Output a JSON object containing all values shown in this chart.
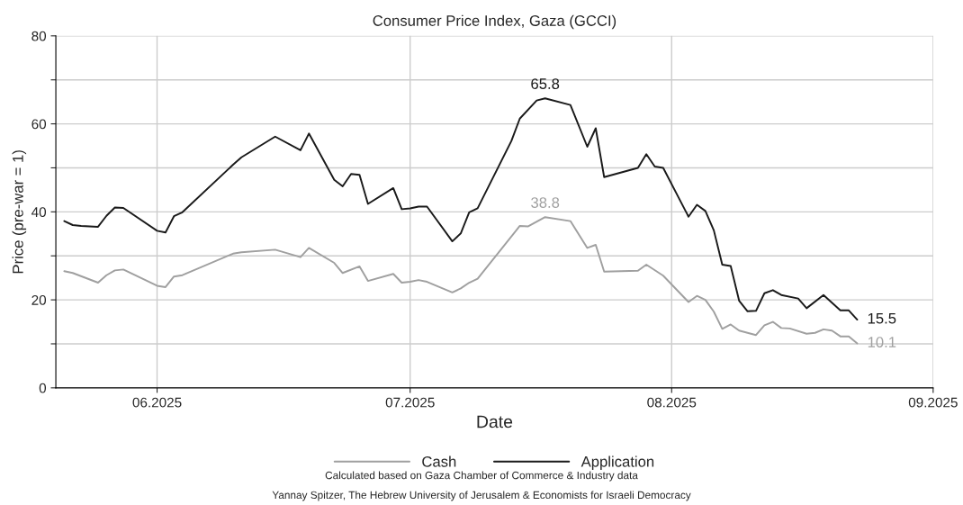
{
  "chart_data": {
    "type": "line",
    "title": "Consumer Price Index, Gaza (GCCI)",
    "xlabel": "Date",
    "ylabel": "Price (pre-war = 1)",
    "series": [
      {
        "name": "Cash",
        "color": "#a0a0a0",
        "x": [
          "2025-05-21",
          "2025-05-22",
          "2025-05-25",
          "2025-05-26",
          "2025-05-27",
          "2025-05-28",
          "2025-06-01",
          "2025-06-02",
          "2025-06-03",
          "2025-06-04",
          "2025-06-10",
          "2025-06-11",
          "2025-06-15",
          "2025-06-18",
          "2025-06-19",
          "2025-06-22",
          "2025-06-23",
          "2025-06-25",
          "2025-06-26",
          "2025-06-29",
          "2025-06-30",
          "2025-07-01",
          "2025-07-02",
          "2025-07-03",
          "2025-07-06",
          "2025-07-07",
          "2025-07-08",
          "2025-07-09",
          "2025-07-14",
          "2025-07-15",
          "2025-07-17",
          "2025-07-20",
          "2025-07-22",
          "2025-07-23",
          "2025-07-24",
          "2025-07-28",
          "2025-07-29",
          "2025-07-31",
          "2025-08-03",
          "2025-08-04",
          "2025-08-05",
          "2025-08-06",
          "2025-08-07",
          "2025-08-08",
          "2025-08-09",
          "2025-08-11",
          "2025-08-12",
          "2025-08-13",
          "2025-08-14",
          "2025-08-15",
          "2025-08-17",
          "2025-08-18",
          "2025-08-19",
          "2025-08-20",
          "2025-08-21",
          "2025-08-22",
          "2025-08-23"
        ],
        "values": [
          26.5,
          26.1,
          23.9,
          25.6,
          26.7,
          26.9,
          23.2,
          22.9,
          25.3,
          25.6,
          30.5,
          30.8,
          31.4,
          29.7,
          31.8,
          28.4,
          26.1,
          27.6,
          24.3,
          25.9,
          23.9,
          24.1,
          24.5,
          24.1,
          21.7,
          22.6,
          23.9,
          24.8,
          36.8,
          36.7,
          38.8,
          37.9,
          31.8,
          32.5,
          26.4,
          26.6,
          28.0,
          25.5,
          19.5,
          20.9,
          20.0,
          17.3,
          13.4,
          14.4,
          13.0,
          12.0,
          14.2,
          15.0,
          13.6,
          13.5,
          12.3,
          12.5,
          13.3,
          13.0,
          11.7,
          11.7,
          10.1
        ]
      },
      {
        "name": "Application",
        "color": "#1a1a1a",
        "x": [
          "2025-05-21",
          "2025-05-22",
          "2025-05-23",
          "2025-05-25",
          "2025-05-26",
          "2025-05-27",
          "2025-05-28",
          "2025-06-01",
          "2025-06-02",
          "2025-06-03",
          "2025-06-04",
          "2025-06-10",
          "2025-06-11",
          "2025-06-15",
          "2025-06-18",
          "2025-06-19",
          "2025-06-22",
          "2025-06-23",
          "2025-06-24",
          "2025-06-25",
          "2025-06-26",
          "2025-06-29",
          "2025-06-30",
          "2025-07-01",
          "2025-07-02",
          "2025-07-03",
          "2025-07-06",
          "2025-07-07",
          "2025-07-08",
          "2025-07-09",
          "2025-07-13",
          "2025-07-14",
          "2025-07-16",
          "2025-07-17",
          "2025-07-20",
          "2025-07-22",
          "2025-07-23",
          "2025-07-24",
          "2025-07-28",
          "2025-07-29",
          "2025-07-30",
          "2025-07-31",
          "2025-08-03",
          "2025-08-04",
          "2025-08-05",
          "2025-08-06",
          "2025-08-07",
          "2025-08-08",
          "2025-08-09",
          "2025-08-10",
          "2025-08-11",
          "2025-08-12",
          "2025-08-13",
          "2025-08-14",
          "2025-08-16",
          "2025-08-17",
          "2025-08-19",
          "2025-08-21",
          "2025-08-22",
          "2025-08-23"
        ],
        "values": [
          37.9,
          37.0,
          36.8,
          36.6,
          39.1,
          41.0,
          40.9,
          35.7,
          35.3,
          39.0,
          39.9,
          50.7,
          52.4,
          57.1,
          54.0,
          57.8,
          47.3,
          45.8,
          48.6,
          48.4,
          41.8,
          45.4,
          40.6,
          40.8,
          41.2,
          41.2,
          33.3,
          35.1,
          39.9,
          40.8,
          56.1,
          61.2,
          65.3,
          65.8,
          64.3,
          54.8,
          59.0,
          47.9,
          50.0,
          53.1,
          50.3,
          50.0,
          38.9,
          41.6,
          40.2,
          35.8,
          28.0,
          27.7,
          19.8,
          17.4,
          17.5,
          21.5,
          22.2,
          21.1,
          20.3,
          18.1,
          21.1,
          17.6,
          17.6,
          15.5
        ]
      }
    ],
    "xlim": [
      "2025-05-20",
      "2025-09-01"
    ],
    "xticks": [
      {
        "value": "2025-06-01",
        "label": "06.2025"
      },
      {
        "value": "2025-07-01",
        "label": "07.2025"
      },
      {
        "value": "2025-08-01",
        "label": "08.2025"
      },
      {
        "value": "2025-09-01",
        "label": "09.2025"
      }
    ],
    "ylim": [
      0,
      80
    ],
    "yticks": [
      0,
      {
        "value": 10,
        "label": null
      },
      20,
      {
        "value": 30,
        "label": null
      },
      40,
      {
        "value": 50,
        "label": null
      },
      60,
      {
        "value": 70,
        "label": null
      },
      80
    ],
    "grid": true,
    "legend": "bottom",
    "marker": "none",
    "line_style": "solid",
    "annotations": [
      {
        "text": "65.8",
        "x": "2025-07-17",
        "y": 65.8
      },
      {
        "text": "38.8",
        "x": "2025-07-17",
        "y": 38.8
      },
      {
        "text": "15.5",
        "x": "2025-08-23",
        "y": 15.5
      },
      {
        "text": "10.1",
        "x": "2025-08-23",
        "y": 10.1
      },
      "Calculated based on Gaza Chamber of Commerce & Industry data",
      "Yannay Spitzer, The Hebrew University of Jerusalem & Economists for Israeli Democracy"
    ]
  }
}
